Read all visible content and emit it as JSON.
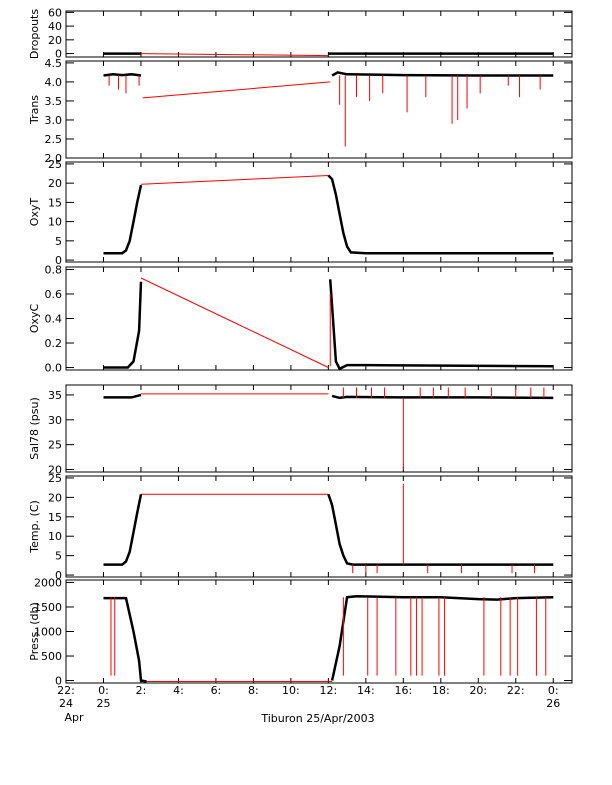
{
  "chart_data": {
    "type": "line",
    "caption": "Tiburon 25/Apr/2003",
    "x_unit": "hours",
    "x_range": [
      22,
      49
    ],
    "x_ticks": [
      {
        "x": 22,
        "l1": "22:",
        "l2": "24",
        "l3": "Apr"
      },
      {
        "x": 24,
        "l1": "0:",
        "l2": "25",
        "l3": ""
      },
      {
        "x": 26,
        "l1": "2:",
        "l2": "",
        "l3": ""
      },
      {
        "x": 28,
        "l1": "4:",
        "l2": "",
        "l3": ""
      },
      {
        "x": 30,
        "l1": "6:",
        "l2": "",
        "l3": ""
      },
      {
        "x": 32,
        "l1": "8:",
        "l2": "",
        "l3": ""
      },
      {
        "x": 34,
        "l1": "10:",
        "l2": "",
        "l3": ""
      },
      {
        "x": 36,
        "l1": "12:",
        "l2": "",
        "l3": ""
      },
      {
        "x": 38,
        "l1": "14:",
        "l2": "",
        "l3": ""
      },
      {
        "x": 40,
        "l1": "16:",
        "l2": "",
        "l3": ""
      },
      {
        "x": 42,
        "l1": "18:",
        "l2": "",
        "l3": ""
      },
      {
        "x": 44,
        "l1": "20:",
        "l2": "",
        "l3": ""
      },
      {
        "x": 46,
        "l1": "22:",
        "l2": "",
        "l3": ""
      },
      {
        "x": 48,
        "l1": "0:",
        "l2": "26",
        "l3": ""
      }
    ],
    "panels": [
      {
        "id": "dropouts",
        "ylabel": "Dropouts",
        "ylim": [
          -5,
          62
        ],
        "yticks": [
          {
            "v": 60,
            "t": "60"
          },
          {
            "v": 40,
            "t": "40"
          },
          {
            "v": 20,
            "t": "20"
          },
          {
            "v": 0,
            "t": "0"
          }
        ],
        "black": [
          [
            24,
            0
          ],
          [
            25.5,
            0
          ],
          [
            26,
            0
          ]
        ],
        "black2": [
          [
            36,
            0
          ],
          [
            40,
            0
          ],
          [
            44,
            0
          ],
          [
            48,
            0
          ]
        ],
        "red": [
          [
            26,
            0
          ],
          [
            36,
            -3
          ]
        ],
        "spikes": []
      },
      {
        "id": "trans",
        "ylabel": "Trans",
        "ylim": [
          2.0,
          4.55
        ],
        "yticks": [
          {
            "v": 4.5,
            "t": "4.5"
          },
          {
            "v": 4.0,
            "t": "4.0"
          },
          {
            "v": 3.5,
            "t": "3.5"
          },
          {
            "v": 3.0,
            "t": "3.0"
          },
          {
            "v": 2.5,
            "t": "2.5"
          },
          {
            "v": 2.0,
            "t": "2.0"
          }
        ],
        "black": [
          [
            24,
            4.17
          ],
          [
            24.5,
            4.2
          ],
          [
            25,
            4.18
          ],
          [
            25.5,
            4.2
          ],
          [
            26,
            4.17
          ]
        ],
        "black2": [
          [
            36.2,
            4.17
          ],
          [
            36.5,
            4.25
          ],
          [
            37,
            4.2
          ],
          [
            40,
            4.18
          ],
          [
            44,
            4.17
          ],
          [
            48,
            4.17
          ]
        ],
        "red": [
          [
            26.1,
            3.58
          ],
          [
            36.1,
            4.0
          ]
        ],
        "spikes": [
          [
            24.3,
            3.9
          ],
          [
            24.8,
            3.8
          ],
          [
            25.2,
            3.7
          ],
          [
            25.9,
            3.9
          ],
          [
            36.6,
            3.4
          ],
          [
            36.9,
            2.3
          ],
          [
            37.5,
            3.6
          ],
          [
            38.2,
            3.5
          ],
          [
            38.9,
            3.7
          ],
          [
            40.2,
            3.2
          ],
          [
            41.2,
            3.6
          ],
          [
            42.6,
            2.9
          ],
          [
            42.9,
            3.0
          ],
          [
            43.4,
            3.3
          ],
          [
            44.1,
            3.7
          ],
          [
            45.6,
            3.9
          ],
          [
            46.2,
            3.6
          ],
          [
            47.3,
            3.8
          ]
        ]
      },
      {
        "id": "oxyt",
        "ylabel": "OxyT",
        "ylim": [
          -0.5,
          25.5
        ],
        "yticks": [
          {
            "v": 25,
            "t": "25"
          },
          {
            "v": 20,
            "t": "20"
          },
          {
            "v": 15,
            "t": "15"
          },
          {
            "v": 10,
            "t": "10"
          },
          {
            "v": 5,
            "t": "5"
          },
          {
            "v": 0,
            "t": "0"
          }
        ],
        "black": [
          [
            24,
            1.8
          ],
          [
            25,
            1.8
          ],
          [
            25.2,
            2.5
          ],
          [
            25.4,
            5
          ],
          [
            25.6,
            10
          ],
          [
            25.8,
            15
          ],
          [
            26,
            19.5
          ]
        ],
        "black2": [
          [
            36,
            22
          ],
          [
            36.2,
            21
          ],
          [
            36.4,
            17
          ],
          [
            36.6,
            12
          ],
          [
            36.8,
            7
          ],
          [
            37,
            3.5
          ],
          [
            37.2,
            2
          ],
          [
            38,
            1.8
          ],
          [
            48,
            1.8
          ]
        ],
        "red": [
          [
            26,
            19.7
          ],
          [
            36,
            22
          ]
        ],
        "spikes": []
      },
      {
        "id": "oxyc",
        "ylabel": "OxyC",
        "ylim": [
          -0.02,
          0.82
        ],
        "yticks": [
          {
            "v": 0.8,
            "t": "0.8"
          },
          {
            "v": 0.6,
            "t": "0.6"
          },
          {
            "v": 0.4,
            "t": "0.4"
          },
          {
            "v": 0.2,
            "t": "0.2"
          },
          {
            "v": 0.0,
            "t": "0.0"
          }
        ],
        "black": [
          [
            24,
            0.0
          ],
          [
            25.3,
            0.0
          ],
          [
            25.6,
            0.05
          ],
          [
            25.9,
            0.3
          ],
          [
            26,
            0.7
          ]
        ],
        "black2": [
          [
            36.1,
            0.72
          ],
          [
            36.2,
            0.5
          ],
          [
            36.4,
            0.05
          ],
          [
            36.6,
            -0.01
          ],
          [
            37,
            0.02
          ],
          [
            38,
            0.02
          ],
          [
            48,
            0.01
          ]
        ],
        "red": [
          [
            26,
            0.73
          ],
          [
            36,
            0.0
          ]
        ],
        "spikes": [
          [
            36.1,
            0.6
          ]
        ]
      },
      {
        "id": "sal",
        "ylabel": "Sal78 (psu)",
        "ylim": [
          19.5,
          37.0
        ],
        "yticks": [
          {
            "v": 35,
            "t": "35"
          },
          {
            "v": 30,
            "t": "30"
          },
          {
            "v": 25,
            "t": "25"
          },
          {
            "v": 20,
            "t": "20"
          }
        ],
        "black": [
          [
            24,
            34.5
          ],
          [
            25.5,
            34.5
          ],
          [
            26,
            35.0
          ]
        ],
        "black2": [
          [
            36.2,
            34.8
          ],
          [
            36.6,
            34.4
          ],
          [
            37,
            34.6
          ],
          [
            40,
            34.5
          ],
          [
            44,
            34.5
          ],
          [
            48,
            34.4
          ]
        ],
        "red": [
          [
            26,
            35.2
          ],
          [
            36,
            35.2
          ]
        ],
        "spikes": [
          [
            36.8,
            36.5
          ],
          [
            37.5,
            36.5
          ],
          [
            38.3,
            36.5
          ],
          [
            39.0,
            36.5
          ],
          [
            40.0,
            20.0
          ],
          [
            40.9,
            36.5
          ],
          [
            41.6,
            36.5
          ],
          [
            42.4,
            36.5
          ],
          [
            43.3,
            36.5
          ],
          [
            44.7,
            36.5
          ],
          [
            46.0,
            36.5
          ],
          [
            46.8,
            36.5
          ],
          [
            47.5,
            36.5
          ]
        ]
      },
      {
        "id": "temp",
        "ylabel": "Temp. (C)",
        "ylim": [
          -0.5,
          25.5
        ],
        "yticks": [
          {
            "v": 25,
            "t": "25"
          },
          {
            "v": 20,
            "t": "20"
          },
          {
            "v": 15,
            "t": "15"
          },
          {
            "v": 10,
            "t": "10"
          },
          {
            "v": 5,
            "t": "5"
          },
          {
            "v": 0,
            "t": "0"
          }
        ],
        "black": [
          [
            24,
            2.7
          ],
          [
            25,
            2.7
          ],
          [
            25.2,
            3.5
          ],
          [
            25.4,
            6
          ],
          [
            25.6,
            11
          ],
          [
            25.8,
            16
          ],
          [
            26,
            20.8
          ]
        ],
        "black2": [
          [
            36,
            20.8
          ],
          [
            36.2,
            18
          ],
          [
            36.4,
            13
          ],
          [
            36.6,
            8
          ],
          [
            36.8,
            5
          ],
          [
            37,
            3
          ],
          [
            37.3,
            2.7
          ],
          [
            48,
            2.7
          ]
        ],
        "red": [
          [
            26,
            20.8
          ],
          [
            36,
            20.8
          ]
        ],
        "spikes": [
          [
            37.3,
            0.5
          ],
          [
            38.0,
            0.5
          ],
          [
            38.6,
            0.5
          ],
          [
            40.0,
            23.5
          ],
          [
            41.3,
            0.5
          ],
          [
            43.1,
            0.5
          ],
          [
            45.8,
            0.5
          ],
          [
            47.0,
            0.5
          ]
        ]
      },
      {
        "id": "press",
        "ylabel": "Press. (db)",
        "ylim": [
          -50,
          2050
        ],
        "yticks": [
          {
            "v": 2000,
            "t": "2000"
          },
          {
            "v": 1500,
            "t": "1500"
          },
          {
            "v": 1000,
            "t": "1000"
          },
          {
            "v": 500,
            "t": "500"
          },
          {
            "v": 0,
            "t": "0"
          }
        ],
        "black": [
          [
            24,
            1680
          ],
          [
            25.2,
            1680
          ],
          [
            25.6,
            1000
          ],
          [
            25.9,
            400
          ],
          [
            26,
            0
          ],
          [
            26.3,
            -20
          ]
        ],
        "black2": [
          [
            36.2,
            0
          ],
          [
            36.6,
            700
          ],
          [
            37,
            1700
          ],
          [
            37.5,
            1720
          ],
          [
            40,
            1700
          ],
          [
            42,
            1700
          ],
          [
            44,
            1660
          ],
          [
            45,
            1650
          ],
          [
            46,
            1680
          ],
          [
            48,
            1700
          ]
        ],
        "red": [
          [
            26.3,
            -20
          ],
          [
            36.2,
            -20
          ]
        ],
        "spikes": [
          [
            24.2,
            1700
          ],
          [
            24.4,
            100
          ],
          [
            24.6,
            100
          ],
          [
            36.8,
            100
          ],
          [
            37.2,
            1700
          ],
          [
            38.1,
            100
          ],
          [
            38.6,
            100
          ],
          [
            39.6,
            100
          ],
          [
            40.1,
            1700
          ],
          [
            40.4,
            100
          ],
          [
            40.7,
            100
          ],
          [
            41.0,
            100
          ],
          [
            41.9,
            100
          ],
          [
            42.2,
            100
          ],
          [
            44.3,
            100
          ],
          [
            45.2,
            100
          ],
          [
            45.7,
            100
          ],
          [
            46.1,
            100
          ],
          [
            47.1,
            100
          ],
          [
            47.6,
            100
          ]
        ]
      }
    ]
  }
}
